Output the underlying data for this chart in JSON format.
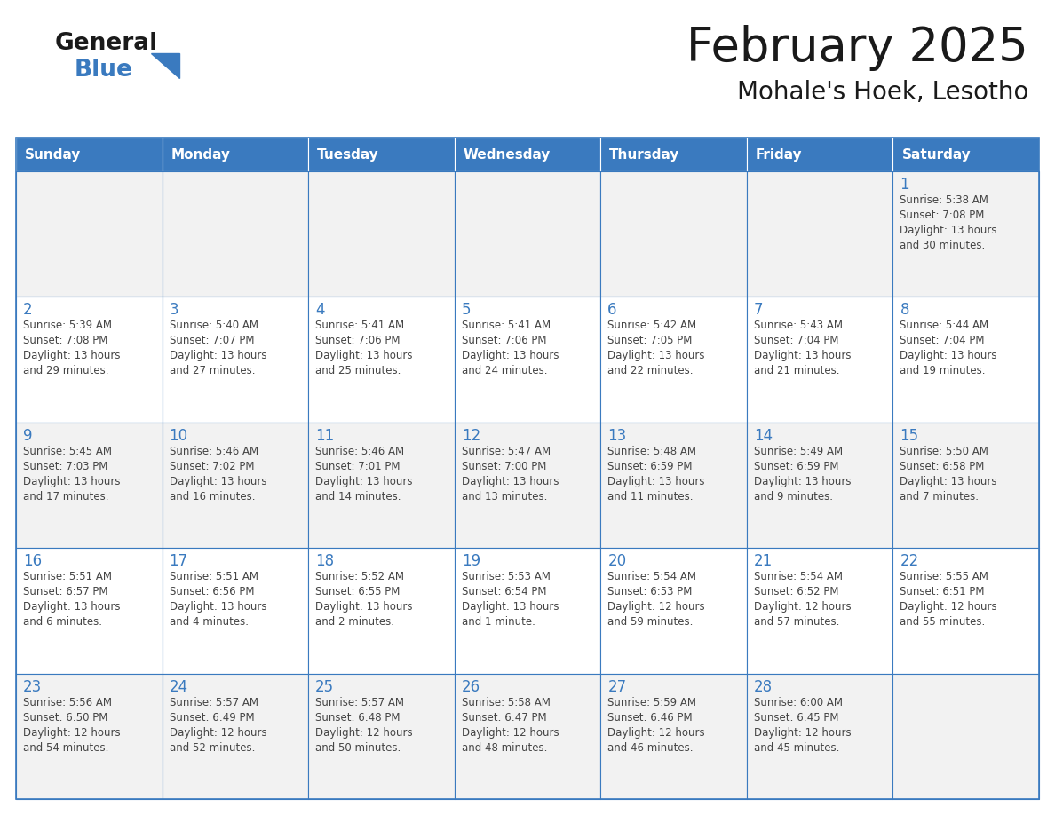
{
  "title": "February 2025",
  "subtitle": "Mohale's Hoek, Lesotho",
  "days_of_week": [
    "Sunday",
    "Monday",
    "Tuesday",
    "Wednesday",
    "Thursday",
    "Friday",
    "Saturday"
  ],
  "header_bg": "#3a7abf",
  "header_text": "#ffffff",
  "cell_bg_even": "#ffffff",
  "cell_bg_odd": "#f2f2f2",
  "border_color": "#3a7abf",
  "day_num_color": "#3a7abf",
  "cell_text_color": "#444444",
  "title_color": "#1a1a1a",
  "subtitle_color": "#1a1a1a",
  "logo_general_color": "#1a1a1a",
  "logo_blue_color": "#3a7abf",
  "calendar": [
    [
      {
        "day": null,
        "info": ""
      },
      {
        "day": null,
        "info": ""
      },
      {
        "day": null,
        "info": ""
      },
      {
        "day": null,
        "info": ""
      },
      {
        "day": null,
        "info": ""
      },
      {
        "day": null,
        "info": ""
      },
      {
        "day": 1,
        "info": "Sunrise: 5:38 AM\nSunset: 7:08 PM\nDaylight: 13 hours\nand 30 minutes."
      }
    ],
    [
      {
        "day": 2,
        "info": "Sunrise: 5:39 AM\nSunset: 7:08 PM\nDaylight: 13 hours\nand 29 minutes."
      },
      {
        "day": 3,
        "info": "Sunrise: 5:40 AM\nSunset: 7:07 PM\nDaylight: 13 hours\nand 27 minutes."
      },
      {
        "day": 4,
        "info": "Sunrise: 5:41 AM\nSunset: 7:06 PM\nDaylight: 13 hours\nand 25 minutes."
      },
      {
        "day": 5,
        "info": "Sunrise: 5:41 AM\nSunset: 7:06 PM\nDaylight: 13 hours\nand 24 minutes."
      },
      {
        "day": 6,
        "info": "Sunrise: 5:42 AM\nSunset: 7:05 PM\nDaylight: 13 hours\nand 22 minutes."
      },
      {
        "day": 7,
        "info": "Sunrise: 5:43 AM\nSunset: 7:04 PM\nDaylight: 13 hours\nand 21 minutes."
      },
      {
        "day": 8,
        "info": "Sunrise: 5:44 AM\nSunset: 7:04 PM\nDaylight: 13 hours\nand 19 minutes."
      }
    ],
    [
      {
        "day": 9,
        "info": "Sunrise: 5:45 AM\nSunset: 7:03 PM\nDaylight: 13 hours\nand 17 minutes."
      },
      {
        "day": 10,
        "info": "Sunrise: 5:46 AM\nSunset: 7:02 PM\nDaylight: 13 hours\nand 16 minutes."
      },
      {
        "day": 11,
        "info": "Sunrise: 5:46 AM\nSunset: 7:01 PM\nDaylight: 13 hours\nand 14 minutes."
      },
      {
        "day": 12,
        "info": "Sunrise: 5:47 AM\nSunset: 7:00 PM\nDaylight: 13 hours\nand 13 minutes."
      },
      {
        "day": 13,
        "info": "Sunrise: 5:48 AM\nSunset: 6:59 PM\nDaylight: 13 hours\nand 11 minutes."
      },
      {
        "day": 14,
        "info": "Sunrise: 5:49 AM\nSunset: 6:59 PM\nDaylight: 13 hours\nand 9 minutes."
      },
      {
        "day": 15,
        "info": "Sunrise: 5:50 AM\nSunset: 6:58 PM\nDaylight: 13 hours\nand 7 minutes."
      }
    ],
    [
      {
        "day": 16,
        "info": "Sunrise: 5:51 AM\nSunset: 6:57 PM\nDaylight: 13 hours\nand 6 minutes."
      },
      {
        "day": 17,
        "info": "Sunrise: 5:51 AM\nSunset: 6:56 PM\nDaylight: 13 hours\nand 4 minutes."
      },
      {
        "day": 18,
        "info": "Sunrise: 5:52 AM\nSunset: 6:55 PM\nDaylight: 13 hours\nand 2 minutes."
      },
      {
        "day": 19,
        "info": "Sunrise: 5:53 AM\nSunset: 6:54 PM\nDaylight: 13 hours\nand 1 minute."
      },
      {
        "day": 20,
        "info": "Sunrise: 5:54 AM\nSunset: 6:53 PM\nDaylight: 12 hours\nand 59 minutes."
      },
      {
        "day": 21,
        "info": "Sunrise: 5:54 AM\nSunset: 6:52 PM\nDaylight: 12 hours\nand 57 minutes."
      },
      {
        "day": 22,
        "info": "Sunrise: 5:55 AM\nSunset: 6:51 PM\nDaylight: 12 hours\nand 55 minutes."
      }
    ],
    [
      {
        "day": 23,
        "info": "Sunrise: 5:56 AM\nSunset: 6:50 PM\nDaylight: 12 hours\nand 54 minutes."
      },
      {
        "day": 24,
        "info": "Sunrise: 5:57 AM\nSunset: 6:49 PM\nDaylight: 12 hours\nand 52 minutes."
      },
      {
        "day": 25,
        "info": "Sunrise: 5:57 AM\nSunset: 6:48 PM\nDaylight: 12 hours\nand 50 minutes."
      },
      {
        "day": 26,
        "info": "Sunrise: 5:58 AM\nSunset: 6:47 PM\nDaylight: 12 hours\nand 48 minutes."
      },
      {
        "day": 27,
        "info": "Sunrise: 5:59 AM\nSunset: 6:46 PM\nDaylight: 12 hours\nand 46 minutes."
      },
      {
        "day": 28,
        "info": "Sunrise: 6:00 AM\nSunset: 6:45 PM\nDaylight: 12 hours\nand 45 minutes."
      },
      {
        "day": null,
        "info": ""
      }
    ]
  ]
}
